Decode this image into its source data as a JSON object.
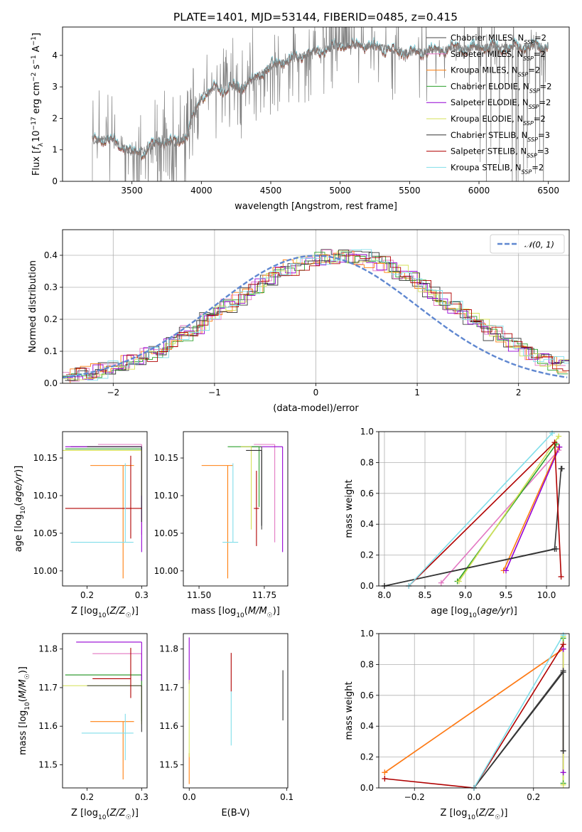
{
  "title": "PLATE=1401, MJD=53144, FIBERID=0485, z=0.415",
  "colors": {
    "Chabrier MILES": "#444444",
    "Salpeter MILES": "#e377c2",
    "Kroupa MILES": "#ff7f0e",
    "Chabrier ELODIE": "#2ca02c",
    "Salpeter ELODIE": "#9400d3",
    "Kroupa ELODIE": "#d4e157",
    "Chabrier STELIB": "#333333",
    "Salpeter STELIB": "#b00000",
    "Kroupa STELIB": "#80deea",
    "data": "#808080",
    "gauss": "#5f87d0"
  },
  "legend_models": [
    {
      "name": "Chabrier MILES",
      "nssp": "2"
    },
    {
      "name": "Salpeter MILES",
      "nssp": "2"
    },
    {
      "name": "Kroupa MILES",
      "nssp": "2"
    },
    {
      "name": "Chabrier ELODIE",
      "nssp": "2"
    },
    {
      "name": "Salpeter ELODIE",
      "nssp": "2"
    },
    {
      "name": "Kroupa ELODIE",
      "nssp": "2"
    },
    {
      "name": "Chabrier STELIB",
      "nssp": "3"
    },
    {
      "name": "Salpeter STELIB",
      "nssp": "3"
    },
    {
      "name": "Kroupa STELIB",
      "nssp": "2"
    }
  ],
  "chart_data": [
    {
      "id": "spectrum",
      "type": "line",
      "xlabel": "wavelength [Angstrom, rest frame]",
      "ylabel": "Flux [f_λ 10^-17 erg cm^-2 s^-1 A^-1]",
      "xlim": [
        3000,
        6650
      ],
      "ylim": [
        0,
        4.9
      ],
      "xticks": [
        3500,
        4000,
        4500,
        5000,
        5500,
        6000,
        6500
      ],
      "yticks": [
        0,
        1,
        2,
        3,
        4
      ],
      "legend_position": "upper right",
      "continuum_knots": [
        [
          3215,
          1.25
        ],
        [
          3300,
          1.35
        ],
        [
          3400,
          1.2
        ],
        [
          3500,
          0.9
        ],
        [
          3600,
          1.0
        ],
        [
          3700,
          1.3
        ],
        [
          3800,
          1.2
        ],
        [
          3900,
          1.5
        ],
        [
          4000,
          2.7
        ],
        [
          4100,
          2.95
        ],
        [
          4300,
          3.0
        ],
        [
          4500,
          3.65
        ],
        [
          4800,
          4.1
        ],
        [
          5000,
          4.3
        ],
        [
          5200,
          4.3
        ],
        [
          5500,
          4.1
        ],
        [
          5800,
          4.2
        ],
        [
          6000,
          4.25
        ],
        [
          6200,
          4.25
        ],
        [
          6500,
          4.3
        ]
      ]
    },
    {
      "id": "residuals",
      "type": "line",
      "xlabel": "(data-model)/error",
      "ylabel": "Normed distribution",
      "xlim": [
        -2.5,
        2.5
      ],
      "ylim": [
        0,
        0.48
      ],
      "xticks": [
        -2,
        -1,
        0,
        1,
        2
      ],
      "yticks": [
        0.0,
        0.1,
        0.2,
        0.3,
        0.4
      ],
      "grid": true,
      "legend_position": "upper right",
      "reference_curve": {
        "name": "𝒩(0, 1)",
        "mean": 0,
        "sigma": 1
      },
      "histogram_bin_width": 0.1,
      "histogram_envelope": {
        "mean": 0.25,
        "sigma": 1.1,
        "peak": 0.4
      }
    },
    {
      "id": "age_vs_Z",
      "type": "scatter",
      "xlabel": "Z [log10(Z/Z☉)]",
      "ylabel": "age [log10(age/yr)]",
      "xlim": [
        0.155,
        0.31
      ],
      "ylim": [
        9.98,
        10.185
      ],
      "xticks": [
        0.2,
        0.3
      ],
      "yticks": [
        10.0,
        10.05,
        10.1,
        10.15
      ],
      "points": [
        {
          "model": "Chabrier MILES",
          "x": 0.3,
          "xerr": [
            0.13,
            0.0
          ],
          "y": 10.165,
          "yerr": [
            0.1,
            0.0
          ]
        },
        {
          "model": "Salpeter MILES",
          "x": 0.3,
          "xerr": [
            0.08,
            0.0
          ],
          "y": 10.168,
          "yerr": [
            0.12,
            0.0
          ]
        },
        {
          "model": "Kroupa MILES",
          "x": 0.266,
          "xerr": [
            0.06,
            0.02
          ],
          "y": 10.14,
          "yerr": [
            0.15,
            0.0
          ]
        },
        {
          "model": "Chabrier ELODIE",
          "x": 0.3,
          "xerr": [
            0.14,
            0.0
          ],
          "y": 10.162,
          "yerr": [
            0.08,
            0.0
          ]
        },
        {
          "model": "Salpeter ELODIE",
          "x": 0.3,
          "xerr": [
            0.14,
            0.0
          ],
          "y": 10.165,
          "yerr": [
            0.14,
            0.0
          ]
        },
        {
          "model": "Kroupa ELODIE",
          "x": 0.3,
          "xerr": [
            0.15,
            0.0
          ],
          "y": 10.16,
          "yerr": [
            0.06,
            0.0
          ]
        },
        {
          "model": "Chabrier STELIB",
          "x": 0.3,
          "xerr": [
            0.1,
            0.0
          ],
          "y": 10.165,
          "yerr": [
            0.1,
            0.0
          ]
        },
        {
          "model": "Salpeter STELIB",
          "x": 0.28,
          "xerr": [
            0.12,
            0.02
          ],
          "y": 10.083,
          "yerr": [
            0.04,
            0.07
          ]
        },
        {
          "model": "Kroupa STELIB",
          "x": 0.27,
          "xerr": [
            0.1,
            0.015
          ],
          "y": 10.038,
          "yerr": [
            0.0,
            0.105
          ]
        }
      ]
    },
    {
      "id": "age_vs_mass",
      "type": "scatter",
      "xlabel": "mass [log10(M/M☉)]",
      "ylabel": "",
      "xlim": [
        11.44,
        11.84
      ],
      "ylim": [
        9.98,
        10.185
      ],
      "xticks": [
        11.5,
        11.75
      ],
      "yticks": [
        10.0,
        10.05,
        10.1,
        10.15
      ],
      "points": [
        {
          "model": "Chabrier MILES",
          "x": 11.74,
          "xerr": [
            0.08,
            0.0
          ],
          "y": 10.165,
          "yerr": [
            0.11,
            0.0
          ]
        },
        {
          "model": "Salpeter MILES",
          "x": 11.79,
          "xerr": [
            0.08,
            0.0
          ],
          "y": 10.168,
          "yerr": [
            0.13,
            0.0
          ]
        },
        {
          "model": "Kroupa MILES",
          "x": 11.61,
          "xerr": [
            0.1,
            0.02
          ],
          "y": 10.14,
          "yerr": [
            0.15,
            0.0
          ]
        },
        {
          "model": "Chabrier ELODIE",
          "x": 11.73,
          "xerr": [
            0.12,
            0.0
          ],
          "y": 10.165,
          "yerr": [
            0.08,
            0.0
          ]
        },
        {
          "model": "Salpeter ELODIE",
          "x": 11.82,
          "xerr": [
            0.08,
            0.0
          ],
          "y": 10.165,
          "yerr": [
            0.14,
            0.0
          ]
        },
        {
          "model": "Kroupa ELODIE",
          "x": 11.7,
          "xerr": [
            0.04,
            0.0
          ],
          "y": 10.165,
          "yerr": [
            0.11,
            0.0
          ]
        },
        {
          "model": "Chabrier STELIB",
          "x": 11.74,
          "xerr": [
            0.06,
            0.0
          ],
          "y": 10.16,
          "yerr": [
            0.1,
            0.0
          ]
        },
        {
          "model": "Salpeter STELIB",
          "x": 11.72,
          "xerr": [
            0.01,
            0.01
          ],
          "y": 10.083,
          "yerr": [
            0.05,
            0.05
          ]
        },
        {
          "model": "Kroupa STELIB",
          "x": 11.63,
          "xerr": [
            0.04,
            0.02
          ],
          "y": 10.038,
          "yerr": [
            0.0,
            0.105
          ]
        }
      ]
    },
    {
      "id": "weight_vs_age",
      "type": "line",
      "xlabel": "age [log10(age/yr)]",
      "ylabel": "mass weight",
      "xlim": [
        7.93,
        10.28
      ],
      "ylim": [
        0,
        1.0
      ],
      "xticks": [
        8.0,
        8.5,
        9.0,
        9.5,
        10.0
      ],
      "yticks": [
        0.0,
        0.2,
        0.4,
        0.6,
        0.8,
        1.0
      ],
      "grid": true,
      "series": [
        {
          "model": "Chabrier MILES",
          "x": [
            8.0,
            10.12
          ],
          "y": [
            0.0,
            0.24
          ]
        },
        {
          "model": "Salpeter MILES",
          "x": [
            8.7,
            10.15
          ],
          "y": [
            0.02,
            0.88
          ]
        },
        {
          "model": "Kroupa MILES",
          "x": [
            9.47,
            10.15
          ],
          "y": [
            0.1,
            0.9
          ]
        },
        {
          "model": "Chabrier ELODIE",
          "x": [
            8.9,
            10.12
          ],
          "y": [
            0.03,
            0.92
          ]
        },
        {
          "model": "Salpeter ELODIE",
          "x": [
            9.5,
            10.16
          ],
          "y": [
            0.1,
            0.9
          ]
        },
        {
          "model": "Kroupa ELODIE",
          "x": [
            8.92,
            10.15
          ],
          "y": [
            0.03,
            0.97
          ]
        },
        {
          "model": "Chabrier STELIB",
          "x": [
            8.0,
            10.1,
            10.18,
            10.19
          ],
          "y": [
            0.0,
            0.24,
            0.76,
            0.76
          ]
        },
        {
          "model": "Salpeter STELIB",
          "x": [
            8.3,
            10.1,
            10.18
          ],
          "y": [
            0.0,
            0.93,
            0.06
          ]
        },
        {
          "model": "Kroupa STELIB",
          "x": [
            8.3,
            10.07
          ],
          "y": [
            0.0,
            0.99
          ]
        }
      ]
    },
    {
      "id": "mass_vs_Z",
      "type": "scatter",
      "xlabel": "Z [log10(Z/Z☉)]",
      "ylabel": "mass [log10(M/M☉)]",
      "xlim": [
        0.155,
        0.31
      ],
      "ylim": [
        11.44,
        11.84
      ],
      "xticks": [
        0.2,
        0.3
      ],
      "yticks": [
        11.5,
        11.6,
        11.7,
        11.8
      ],
      "points": [
        {
          "model": "Chabrier MILES",
          "x": 0.3,
          "xerr": [
            0.14,
            0.0
          ],
          "y": 11.733,
          "yerr": [
            0.1,
            0.0
          ]
        },
        {
          "model": "Salpeter MILES",
          "x": 0.3,
          "xerr": [
            0.09,
            0.0
          ],
          "y": 11.788,
          "yerr": [
            0.12,
            0.0
          ]
        },
        {
          "model": "Kroupa MILES",
          "x": 0.266,
          "xerr": [
            0.06,
            0.02
          ],
          "y": 11.612,
          "yerr": [
            0.15,
            0.0
          ]
        },
        {
          "model": "Chabrier ELODIE",
          "x": 0.3,
          "xerr": [
            0.14,
            0.0
          ],
          "y": 11.733,
          "yerr": [
            0.12,
            0.0
          ]
        },
        {
          "model": "Salpeter ELODIE",
          "x": 0.3,
          "xerr": [
            0.12,
            0.0
          ],
          "y": 11.818,
          "yerr": [
            0.1,
            0.0
          ]
        },
        {
          "model": "Kroupa ELODIE",
          "x": 0.3,
          "xerr": [
            0.15,
            0.0
          ],
          "y": 11.705,
          "yerr": [
            0.1,
            0.0
          ]
        },
        {
          "model": "Chabrier STELIB",
          "x": 0.3,
          "xerr": [
            0.1,
            0.0
          ],
          "y": 11.705,
          "yerr": [
            0.12,
            0.0
          ]
        },
        {
          "model": "Salpeter STELIB",
          "x": 0.28,
          "xerr": [
            0.07,
            0.0
          ],
          "y": 11.723,
          "yerr": [
            0.05,
            0.08
          ]
        },
        {
          "model": "Kroupa STELIB",
          "x": 0.27,
          "xerr": [
            0.08,
            0.015
          ],
          "y": 11.582,
          "yerr": [
            0.07,
            0.05
          ]
        }
      ]
    },
    {
      "id": "mass_vs_EBV",
      "type": "scatter",
      "xlabel": "E(B-V)",
      "ylabel": "",
      "xlim": [
        -0.006,
        0.101
      ],
      "ylim": [
        11.44,
        11.84
      ],
      "xticks": [
        0.0,
        0.1
      ],
      "yticks": [
        11.5,
        11.6,
        11.7,
        11.8
      ],
      "points": [
        {
          "model": "Salpeter ELODIE",
          "x": 0.0,
          "y": 11.77,
          "yerr": [
            0.06,
            0.06
          ]
        },
        {
          "model": "Kroupa MILES",
          "x": 0.0,
          "y": 11.53,
          "yerr": [
            0.08,
            0.0
          ]
        },
        {
          "model": "Kroupa ELODIE",
          "x": 0.0,
          "y": 11.62,
          "yerr": [
            0.1,
            0.1
          ]
        },
        {
          "model": "Salpeter STELIB",
          "x": 0.043,
          "y": 11.74,
          "yerr": [
            0.05,
            0.05
          ]
        },
        {
          "model": "Kroupa STELIB",
          "x": 0.043,
          "y": 11.63,
          "yerr": [
            0.08,
            0.06
          ]
        },
        {
          "model": "Chabrier STELIB",
          "x": 0.096,
          "y": 11.675,
          "yerr": [
            0.06,
            0.07
          ]
        }
      ]
    },
    {
      "id": "weight_vs_Z",
      "type": "line",
      "xlabel": "Z [log10(Z/Z☉)]",
      "ylabel": "mass weight",
      "xlim": [
        -0.32,
        0.32
      ],
      "ylim": [
        0,
        1.0
      ],
      "xticks": [
        -0.2,
        0.0,
        0.2
      ],
      "yticks": [
        0.0,
        0.2,
        0.4,
        0.6,
        0.8,
        1.0
      ],
      "grid": true,
      "series": [
        {
          "model": "Chabrier MILES",
          "x": [
            0.0,
            0.3,
            0.3
          ],
          "y": [
            0.0,
            0.76,
            0.24
          ]
        },
        {
          "model": "Salpeter MILES",
          "x": [
            -0.3,
            0.3
          ],
          "y": [
            0.1,
            0.9
          ]
        },
        {
          "model": "Kroupa MILES",
          "x": [
            -0.3,
            0.3
          ],
          "y": [
            0.1,
            0.9
          ]
        },
        {
          "model": "Chabrier ELODIE",
          "x": [
            0.3,
            0.3
          ],
          "y": [
            0.03,
            0.97
          ]
        },
        {
          "model": "Salpeter ELODIE",
          "x": [
            0.3,
            0.3
          ],
          "y": [
            0.1,
            0.9
          ]
        },
        {
          "model": "Kroupa ELODIE",
          "x": [
            0.3,
            0.3
          ],
          "y": [
            0.02,
            0.98
          ]
        },
        {
          "model": "Chabrier STELIB",
          "x": [
            0.0,
            0.3,
            0.3
          ],
          "y": [
            0.0,
            0.75,
            0.24
          ]
        },
        {
          "model": "Salpeter STELIB",
          "x": [
            -0.3,
            0.0,
            0.3
          ],
          "y": [
            0.06,
            0.0,
            0.93
          ]
        },
        {
          "model": "Kroupa STELIB",
          "x": [
            0.0,
            0.3
          ],
          "y": [
            0.0,
            0.99
          ]
        }
      ]
    }
  ]
}
